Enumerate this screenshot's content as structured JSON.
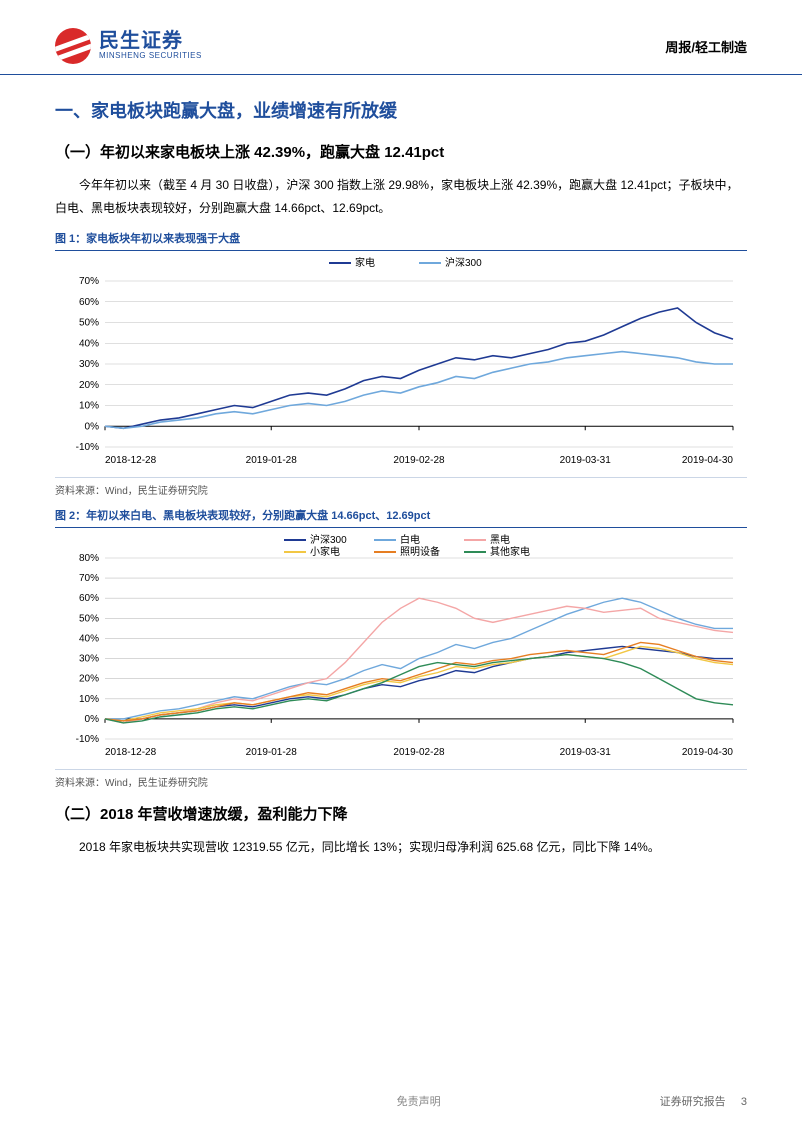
{
  "header": {
    "logo_cn": "民生证券",
    "logo_en": "MINSHENG SECURITIES",
    "doc_type": "周报/轻工制造"
  },
  "section1": {
    "title": "一、家电板块跑赢大盘，业绩增速有所放缓",
    "sub1_title": "（一）年初以来家电板块上涨 42.39%，跑赢大盘 12.41pct",
    "sub1_body": "今年年初以来（截至 4 月 30 日收盘），沪深 300 指数上涨 29.98%，家电板块上涨 42.39%，跑赢大盘 12.41pct；子板块中，白电、黑电板块表现较好，分别跑赢大盘 14.66pct、12.69pct。",
    "sub2_title": "（二）2018 年营收增速放缓，盈利能力下降",
    "sub2_body": "2018 年家电板块共实现营收 12319.55 亿元，同比增长 13%；实现归母净利润 625.68 亿元，同比下降 14%。"
  },
  "fig1": {
    "title": "图 1：家电板块年初以来表现强于大盘",
    "source": "资料来源：Wind，民生证券研究院",
    "type": "line",
    "ylim": [
      -10,
      70
    ],
    "ytick_step": 10,
    "y_ticks": [
      "-10%",
      "0%",
      "10%",
      "20%",
      "30%",
      "40%",
      "50%",
      "60%",
      "70%"
    ],
    "x_labels": [
      "2018-12-28",
      "2019-01-28",
      "2019-02-28",
      "2019-03-31",
      "2019-04-30"
    ],
    "background_color": "#ffffff",
    "grid_color": "#bfbfbf",
    "axis_color": "#000000",
    "label_fontsize": 10,
    "line_width": 1.6,
    "series": [
      {
        "name": "家电",
        "color": "#1f3a93",
        "values": [
          0,
          -1,
          1,
          3,
          4,
          6,
          8,
          10,
          9,
          12,
          15,
          16,
          15,
          18,
          22,
          24,
          23,
          27,
          30,
          33,
          32,
          34,
          33,
          35,
          37,
          40,
          41,
          44,
          48,
          52,
          55,
          57,
          50,
          45,
          42
        ]
      },
      {
        "name": "沪深300",
        "color": "#6fa8dc",
        "values": [
          0,
          -1,
          0,
          2,
          3,
          4,
          6,
          7,
          6,
          8,
          10,
          11,
          10,
          12,
          15,
          17,
          16,
          19,
          21,
          24,
          23,
          26,
          28,
          30,
          31,
          33,
          34,
          35,
          36,
          35,
          34,
          33,
          31,
          30,
          30
        ]
      }
    ]
  },
  "fig2": {
    "title": "图 2：年初以来白电、黑电板块表现较好，分别跑赢大盘 14.66pct、12.69pct",
    "source": "资料来源：Wind，民生证券研究院",
    "type": "line",
    "ylim": [
      -10,
      80
    ],
    "ytick_step": 10,
    "y_ticks": [
      "-10%",
      "0%",
      "10%",
      "20%",
      "30%",
      "40%",
      "50%",
      "60%",
      "70%",
      "80%"
    ],
    "x_labels": [
      "2018-12-28",
      "2019-01-28",
      "2019-02-28",
      "2019-03-31",
      "2019-04-30"
    ],
    "background_color": "#ffffff",
    "grid_color": "#bfbfbf",
    "axis_color": "#000000",
    "label_fontsize": 10,
    "line_width": 1.4,
    "series": [
      {
        "name": "沪深300",
        "color": "#1f3a93",
        "values": [
          0,
          -1,
          0,
          2,
          3,
          4,
          6,
          7,
          6,
          8,
          10,
          11,
          10,
          12,
          15,
          17,
          16,
          19,
          21,
          24,
          23,
          26,
          28,
          30,
          31,
          33,
          34,
          35,
          36,
          35,
          34,
          33,
          31,
          30,
          30
        ]
      },
      {
        "name": "白电",
        "color": "#6fa8dc",
        "values": [
          0,
          0,
          2,
          4,
          5,
          7,
          9,
          11,
          10,
          13,
          16,
          18,
          17,
          20,
          24,
          27,
          25,
          30,
          33,
          37,
          35,
          38,
          40,
          44,
          48,
          52,
          55,
          58,
          60,
          58,
          54,
          50,
          47,
          45,
          45
        ]
      },
      {
        "name": "黑电",
        "color": "#f4a6a6",
        "values": [
          0,
          -2,
          0,
          2,
          3,
          5,
          8,
          10,
          9,
          12,
          15,
          18,
          20,
          28,
          38,
          48,
          55,
          60,
          58,
          55,
          50,
          48,
          50,
          52,
          54,
          56,
          55,
          53,
          54,
          55,
          50,
          48,
          46,
          44,
          43
        ]
      },
      {
        "name": "小家电",
        "color": "#f2c744",
        "values": [
          0,
          -1,
          1,
          3,
          4,
          5,
          7,
          8,
          7,
          9,
          11,
          12,
          11,
          14,
          17,
          19,
          18,
          21,
          23,
          26,
          25,
          27,
          28,
          30,
          31,
          32,
          31,
          30,
          33,
          36,
          35,
          33,
          30,
          28,
          27
        ]
      },
      {
        "name": "照明设备",
        "color": "#e67e22",
        "values": [
          0,
          -1,
          0,
          2,
          3,
          4,
          6,
          8,
          7,
          9,
          11,
          13,
          12,
          15,
          18,
          20,
          19,
          22,
          25,
          28,
          27,
          29,
          30,
          32,
          33,
          34,
          33,
          32,
          35,
          38,
          37,
          34,
          31,
          29,
          28
        ]
      },
      {
        "name": "其他家电",
        "color": "#2e8b57",
        "values": [
          0,
          -2,
          -1,
          1,
          2,
          3,
          5,
          6,
          5,
          7,
          9,
          10,
          9,
          12,
          15,
          18,
          22,
          26,
          28,
          27,
          26,
          28,
          29,
          30,
          31,
          32,
          31,
          30,
          28,
          25,
          20,
          15,
          10,
          8,
          7
        ]
      }
    ]
  },
  "footer": {
    "left": "",
    "mid": "免责声明",
    "right_label": "证券研究报告",
    "page": "3"
  }
}
